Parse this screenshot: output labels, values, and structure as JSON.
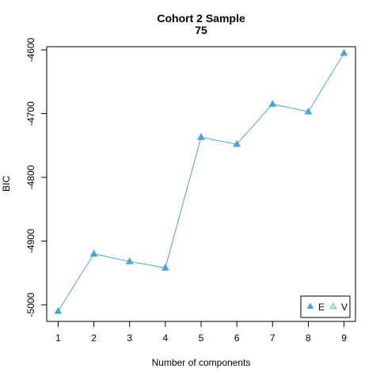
{
  "chart_data": {
    "type": "line",
    "title": [
      "Cohort 2 Sample",
      "75"
    ],
    "xlabel": "Number of components",
    "ylabel": "BIC",
    "x": [
      1,
      2,
      3,
      4,
      5,
      6,
      7,
      8,
      9
    ],
    "xticks": [
      1,
      2,
      3,
      4,
      5,
      6,
      7,
      8,
      9
    ],
    "xlim": [
      0.68,
      9.32
    ],
    "yticks": [
      -5000,
      -4900,
      -4800,
      -4700,
      -4600
    ],
    "ylim": [
      -5026,
      -4595
    ],
    "grid": false,
    "legend_position": "bottom-right",
    "series": [
      {
        "name": "E",
        "marker": "filled-triangle",
        "color": "#4aa3e0",
        "values": [
          -5010,
          -4920,
          -4932,
          -4942,
          -4737,
          -4748,
          -4685,
          -4697,
          -4605
        ]
      },
      {
        "name": "V",
        "marker": "open-triangle",
        "color": "#3fbf9f",
        "values": [
          -5010,
          null,
          null,
          null,
          null,
          null,
          null,
          null,
          null
        ]
      }
    ]
  }
}
